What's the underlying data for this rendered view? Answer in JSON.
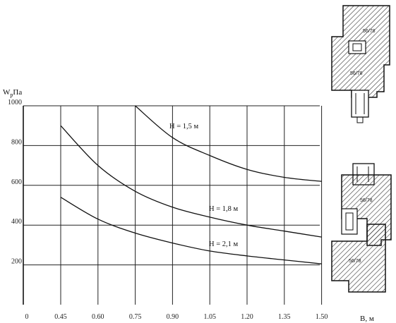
{
  "chart_data": {
    "type": "line",
    "ylabel": "W",
    "ylabel_sub": "р",
    "ylabel_unit": "Па",
    "xlabel": "В, м",
    "xlim": [
      0,
      1.5
    ],
    "ylim": [
      0,
      1000
    ],
    "x_ticks": [
      "0",
      "0.45",
      "0.60",
      "0.75",
      "0.90",
      "1.05",
      "1.20",
      "1.35",
      "1.50"
    ],
    "y_ticks": [
      "200",
      "400",
      "600",
      "800",
      "1000"
    ],
    "grid": true,
    "series": [
      {
        "name": "H = 1,5 м",
        "x": [
          0.75,
          0.9,
          1.05,
          1.2,
          1.35,
          1.5
        ],
        "y": [
          1000,
          840,
          750,
          680,
          640,
          620
        ]
      },
      {
        "name": "H = 1,8 м",
        "x": [
          0.45,
          0.6,
          0.75,
          0.9,
          1.05,
          1.2,
          1.35,
          1.5
        ],
        "y": [
          900,
          700,
          570,
          490,
          440,
          400,
          370,
          340
        ]
      },
      {
        "name": "H = 2,1 м",
        "x": [
          0.45,
          0.6,
          0.75,
          0.9,
          1.05,
          1.2,
          1.35,
          1.5
        ],
        "y": [
          540,
          430,
          360,
          310,
          270,
          245,
          225,
          205
        ]
      }
    ]
  },
  "profiles": {
    "top_label_a": "56/78",
    "top_label_b": "56/78",
    "bottom_label_a": "56/78",
    "bottom_label_b": "56/78"
  }
}
